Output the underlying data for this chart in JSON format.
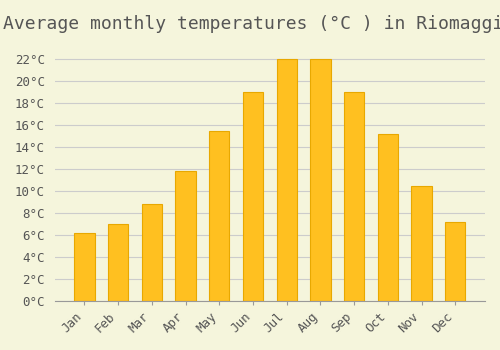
{
  "title": "Average monthly temperatures (°C ) in Riomaggiore",
  "months": [
    "Jan",
    "Feb",
    "Mar",
    "Apr",
    "May",
    "Jun",
    "Jul",
    "Aug",
    "Sep",
    "Oct",
    "Nov",
    "Dec"
  ],
  "values": [
    6.2,
    7.0,
    8.8,
    11.8,
    15.5,
    19.0,
    22.0,
    22.0,
    19.0,
    15.2,
    10.5,
    7.2
  ],
  "bar_color": "#FFC020",
  "bar_edge_color": "#E8A800",
  "background_color": "#F5F5DC",
  "grid_color": "#CCCCCC",
  "text_color": "#555555",
  "ylim": [
    0,
    23.5
  ],
  "yticks": [
    0,
    2,
    4,
    6,
    8,
    10,
    12,
    14,
    16,
    18,
    20,
    22
  ],
  "title_fontsize": 13,
  "tick_fontsize": 9,
  "font_family": "monospace"
}
